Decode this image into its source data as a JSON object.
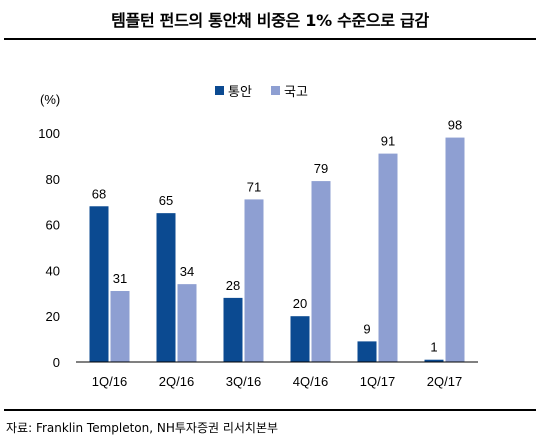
{
  "header": {
    "title": "템플턴 펀드의 통안채 비중은 1% 수준으로 급감"
  },
  "footer": {
    "source": "자료: Franklin Templeton, NH투자증권 리서치본부"
  },
  "colors": {
    "series_1": "#0b4a91",
    "series_2": "#8e9fd2"
  },
  "chart_data": {
    "type": "bar",
    "title": "템플턴 펀드의 통안채 비중은 1% 수준으로 급감",
    "ylabel": "(%)",
    "xlabel": "",
    "ylim": [
      0,
      100
    ],
    "yticks": [
      0,
      20,
      40,
      60,
      80,
      100
    ],
    "categories": [
      "1Q/16",
      "2Q/16",
      "3Q/16",
      "4Q/16",
      "1Q/17",
      "2Q/17"
    ],
    "series": [
      {
        "name": "통안",
        "values": [
          68,
          65,
          28,
          20,
          9,
          1
        ]
      },
      {
        "name": "국고",
        "values": [
          31,
          34,
          71,
          79,
          91,
          98
        ]
      }
    ],
    "legend": "top-center",
    "grid": false
  }
}
